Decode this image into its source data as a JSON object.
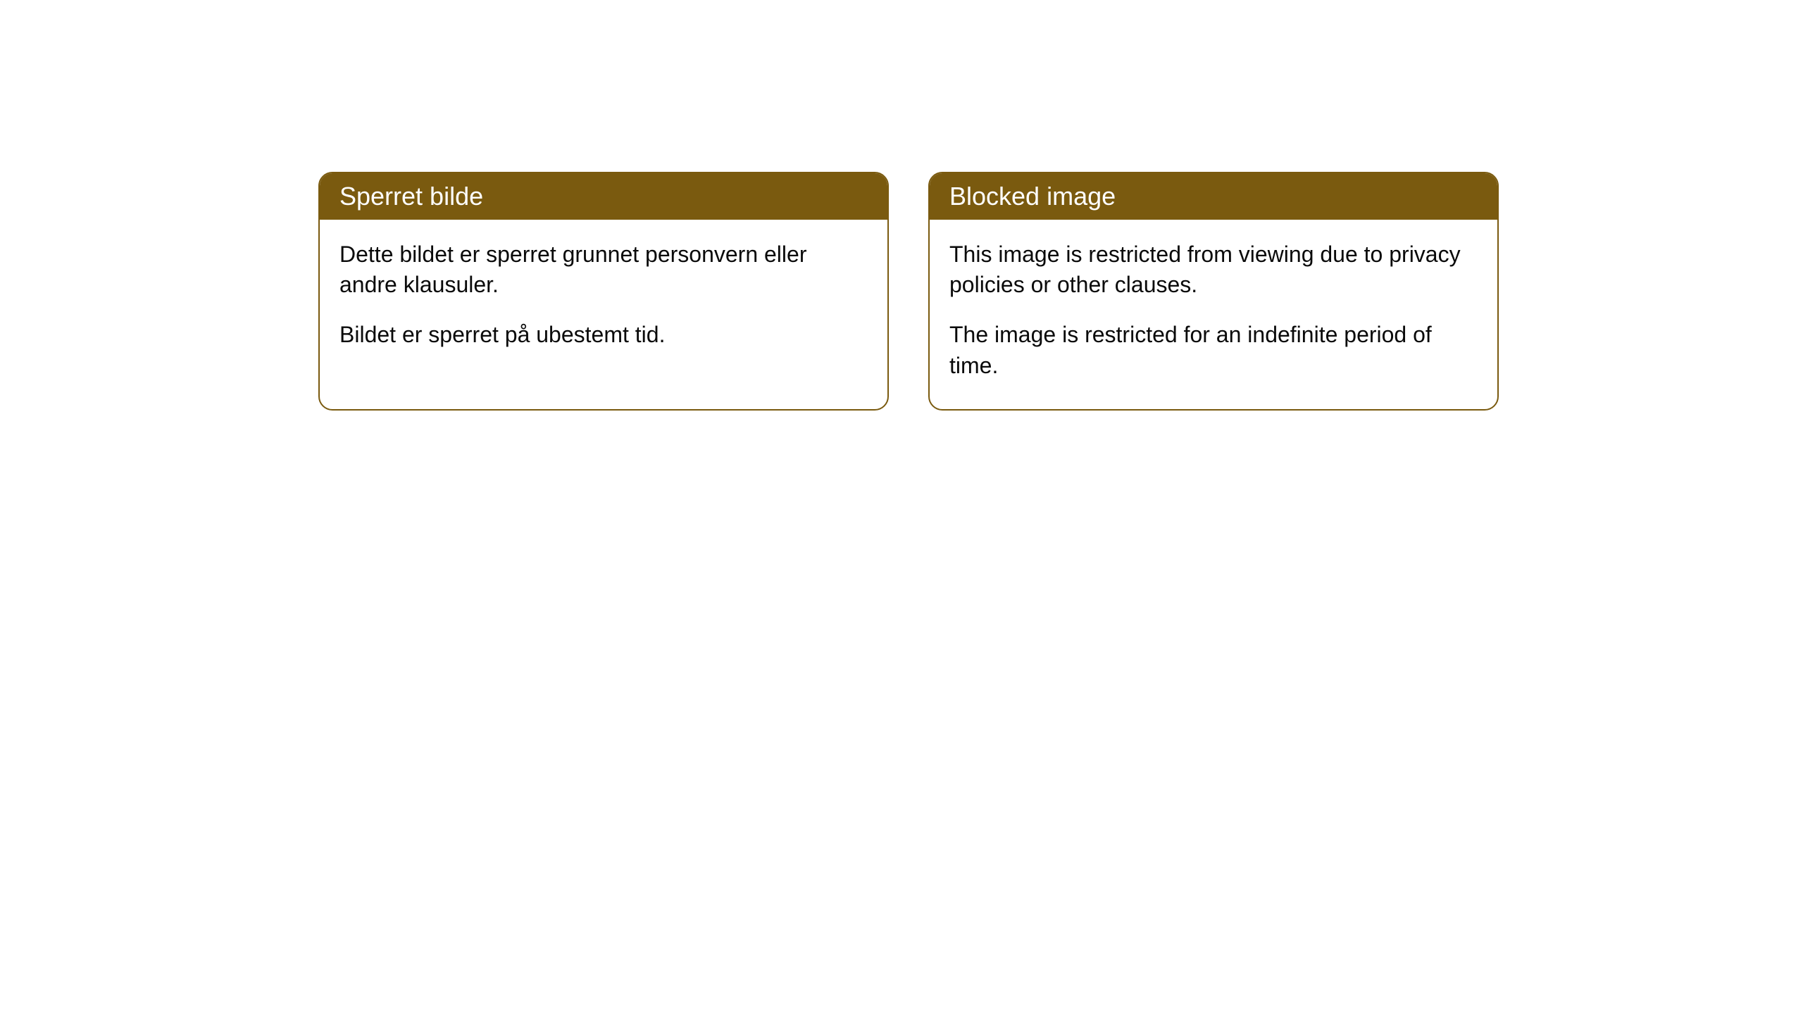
{
  "cards": [
    {
      "title": "Sperret bilde",
      "paragraph1": "Dette bildet er sperret grunnet personvern eller andre klausuler.",
      "paragraph2": "Bildet er sperret på ubestemt tid."
    },
    {
      "title": "Blocked image",
      "paragraph1": "This image is restricted from viewing due to privacy policies or other clauses.",
      "paragraph2": "The image is restricted for an indefinite period of time."
    }
  ],
  "style": {
    "header_bg": "#7a5a0f",
    "header_text_color": "#ffffff",
    "border_color": "#7a5a0f",
    "body_bg": "#ffffff",
    "body_text_color": "#0a0a0a",
    "border_radius": 20,
    "header_fontsize": 36,
    "body_fontsize": 32
  }
}
